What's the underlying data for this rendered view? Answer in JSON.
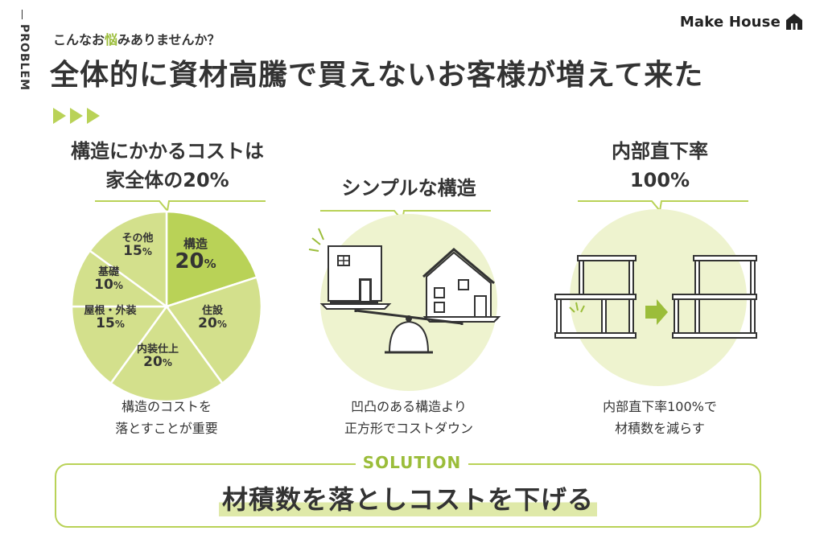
{
  "side_label": "PROBLEM",
  "logo": {
    "text": "Make House",
    "icon": "house-icon"
  },
  "header": {
    "subtitle_before": "こんなお",
    "subtitle_highlight": "悩",
    "subtitle_after": "みありませんか？",
    "title": "全体的に資材高騰で買えないお客様が増えて来た"
  },
  "colors": {
    "accent": "#b9d257",
    "accent_dark": "#9bbd3a",
    "light": "#eef3cf",
    "text": "#333333"
  },
  "columns": [
    {
      "heading_line1": "構造にかかるコストは",
      "heading_line2": "家全体の20%",
      "caption_line1": "構造のコストを",
      "caption_line2": "落とすことが重要"
    },
    {
      "heading_line1": "シンプルな構造",
      "heading_line2": "",
      "caption_line1": "凹凸のある構造より",
      "caption_line2": "正方形でコストダウン"
    },
    {
      "heading_line1": "内部直下率",
      "heading_line2": "100%",
      "caption_line1": "内部直下率100%で",
      "caption_line2": "材積数を減らす"
    }
  ],
  "chart_data": {
    "type": "pie",
    "slices": [
      {
        "label": "構造",
        "value": 20,
        "color": "#b9d257"
      },
      {
        "label": "住設",
        "value": 20,
        "color": "#d3e08c"
      },
      {
        "label": "内装仕上",
        "value": 20,
        "color": "#d3e08c"
      },
      {
        "label": "屋根・外装",
        "value": 15,
        "color": "#d3e08c"
      },
      {
        "label": "基礎",
        "value": 10,
        "color": "#d3e08c"
      },
      {
        "label": "その他",
        "value": 15,
        "color": "#d3e08c"
      }
    ],
    "labels_display": [
      {
        "name": "構造",
        "value": "20",
        "unit": "%"
      },
      {
        "name": "住設",
        "value": "20",
        "unit": "%"
      },
      {
        "name": "内装仕上",
        "value": "20",
        "unit": "%"
      },
      {
        "name": "屋根・外装",
        "value": "15",
        "unit": "%"
      },
      {
        "name": "基礎",
        "value": "10",
        "unit": "%"
      },
      {
        "name": "その他",
        "value": "15",
        "unit": "%"
      }
    ]
  },
  "solution": {
    "label": "SOLUTION",
    "text": "材積数を落としコストを下げる"
  }
}
